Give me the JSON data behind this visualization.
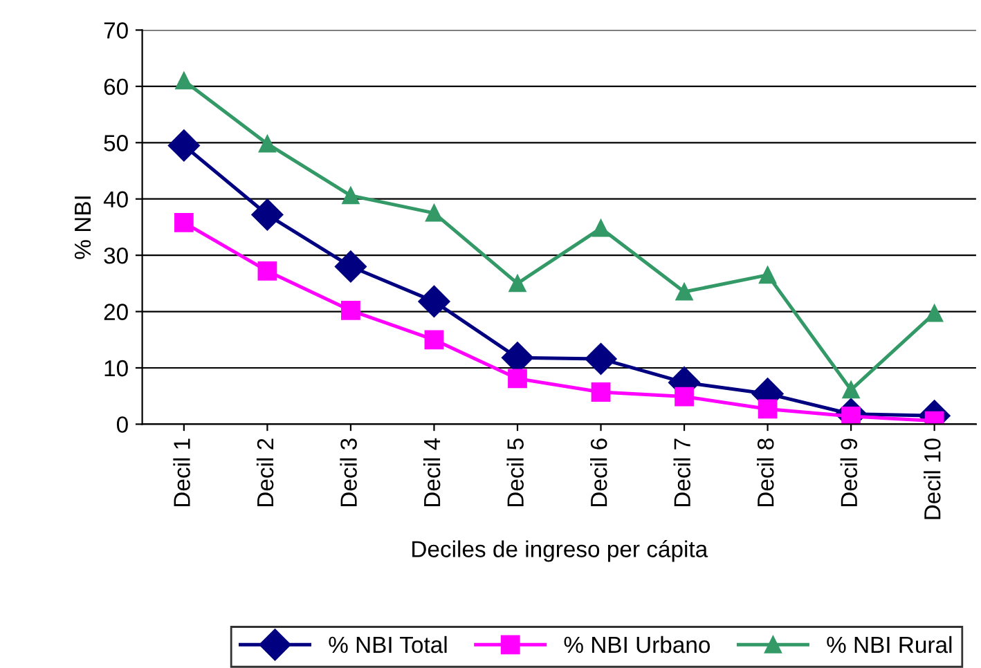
{
  "chart_data": {
    "type": "line",
    "xlabel": "Deciles de ingreso per cápita",
    "ylabel": "% NBI",
    "categories": [
      "Decil 1",
      "Decil 2",
      "Decil 3",
      "Decil 4",
      "Decil 5",
      "Decil 6",
      "Decil 7",
      "Decil 8",
      "Decil 9",
      "Decil 10"
    ],
    "series": [
      {
        "name": "% NBI Total",
        "color": "#000080",
        "marker": "diamond",
        "values": [
          49.5,
          37.2,
          28,
          21.8,
          11.8,
          11.6,
          7.4,
          5.4,
          1.8,
          1.5
        ]
      },
      {
        "name": "% NBI Urbano",
        "color": "#ff00ff",
        "marker": "square",
        "values": [
          35.8,
          27.2,
          20.2,
          15,
          8.1,
          5.7,
          4.9,
          2.7,
          1.4,
          0.6
        ]
      },
      {
        "name": "% NBI Rural",
        "color": "#339966",
        "marker": "triangle",
        "values": [
          61,
          49.8,
          40.6,
          37.5,
          25,
          34.8,
          23.5,
          26.5,
          6.1,
          19.7
        ]
      }
    ],
    "ylim": [
      0,
      70
    ],
    "yticks": [
      0,
      10,
      20,
      30,
      40,
      50,
      60,
      70
    ],
    "grid": "y",
    "legend": "bottom",
    "line_style": "solid"
  }
}
